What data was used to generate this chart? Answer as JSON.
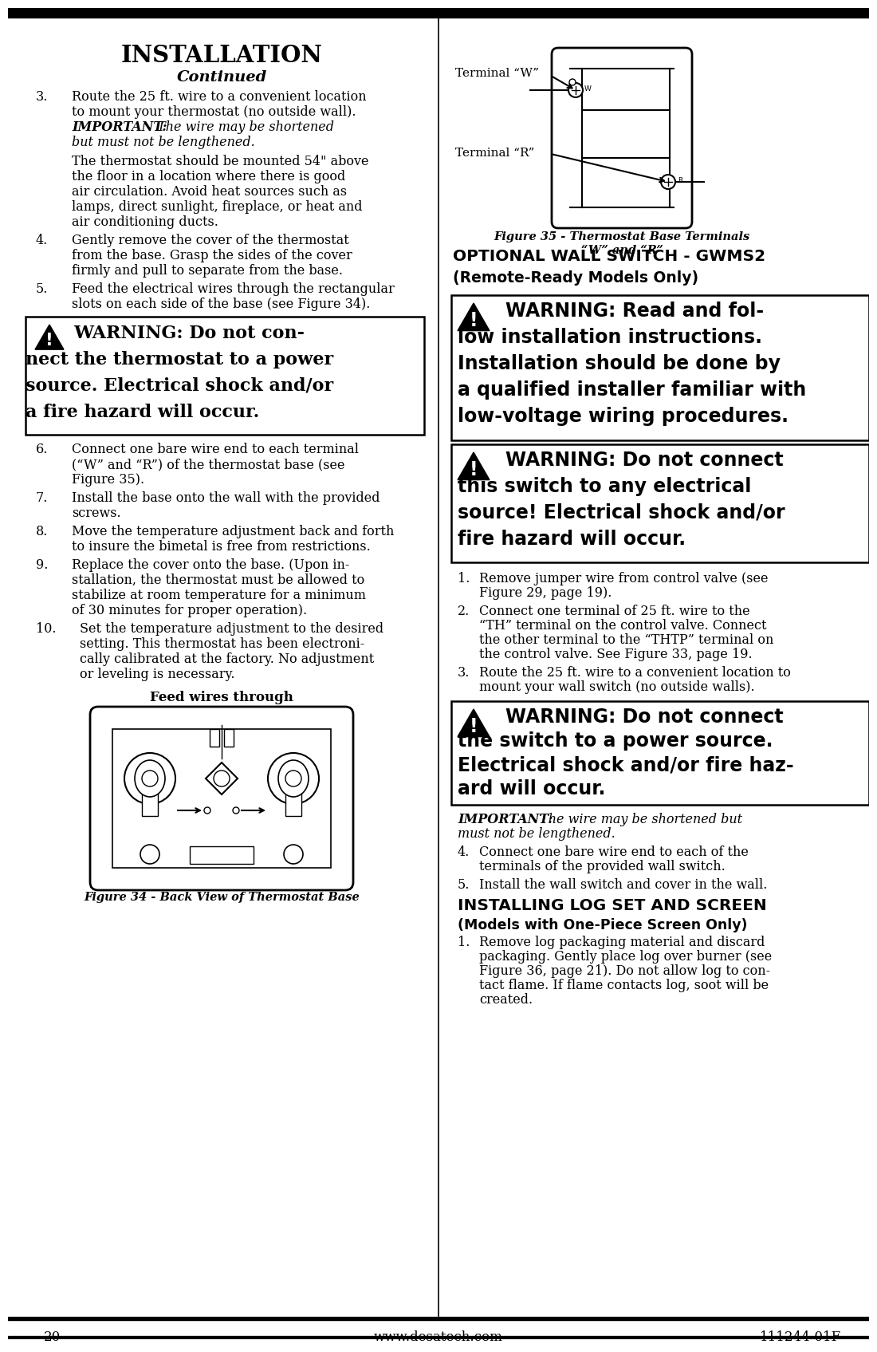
{
  "title": "INSTALLATION",
  "subtitle": "Continued",
  "bg_color": "#ffffff",
  "text_color": "#000000",
  "page_number": "20",
  "website": "www.desatech.com",
  "part_number": "111244-01F"
}
